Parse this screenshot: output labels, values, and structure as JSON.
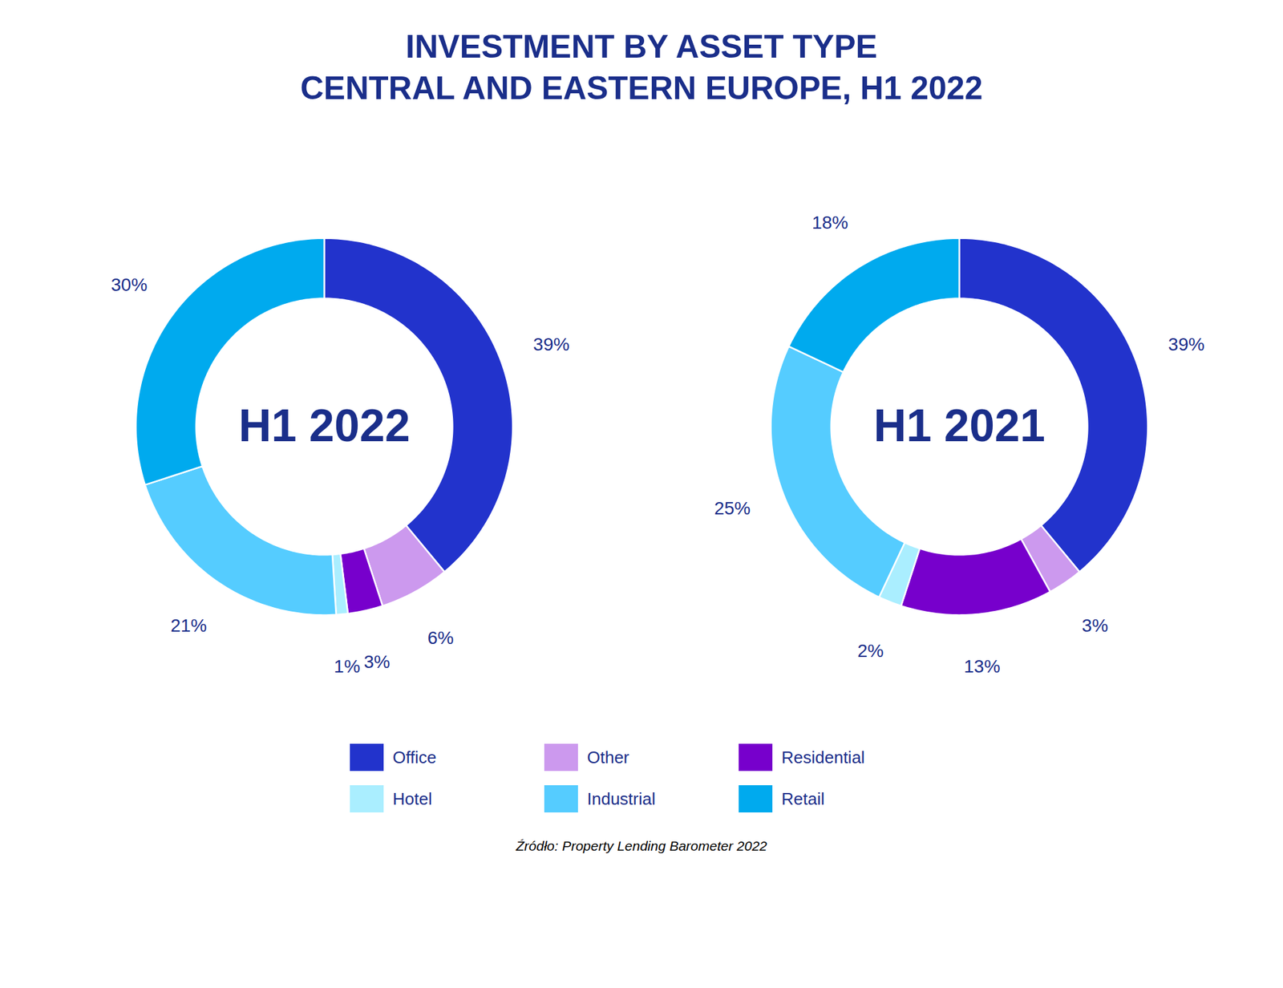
{
  "chart_data": [
    {
      "type": "pie",
      "title": "INVESTMENT BY ASSET TYPE",
      "subtitle": "CENTRAL AND EASTERN EUROPE, H1 2022",
      "annotations": [
        "H1 2022"
      ],
      "categories": [
        "Office",
        "Other",
        "Residential",
        "Hotel",
        "Industrial",
        "Retail"
      ],
      "values": [
        39,
        6,
        3,
        1,
        21,
        30
      ],
      "value_labels": [
        "39%",
        "6%",
        "3%",
        "1%",
        "21%",
        "30%"
      ],
      "colors": [
        "#2233cc",
        "#cc99ee",
        "#7700cc",
        "#aaeeff",
        "#55ccff",
        "#00aaee"
      ],
      "data_labels": true,
      "legend": "bottom"
    },
    {
      "type": "pie",
      "annotations": [
        "H1 2021",
        "Źródło: Property Lending Barometer 2022"
      ],
      "categories": [
        "Office",
        "Other",
        "Residential",
        "Hotel",
        "Industrial",
        "Retail"
      ],
      "values": [
        39,
        3,
        13,
        2,
        25,
        18
      ],
      "value_labels": [
        "39%",
        "3%",
        "13%",
        "2%",
        "25%",
        "18%"
      ],
      "colors": [
        "#2233cc",
        "#cc99ee",
        "#7700cc",
        "#aaeeff",
        "#55ccff",
        "#00aaee"
      ],
      "data_labels": true
    }
  ]
}
